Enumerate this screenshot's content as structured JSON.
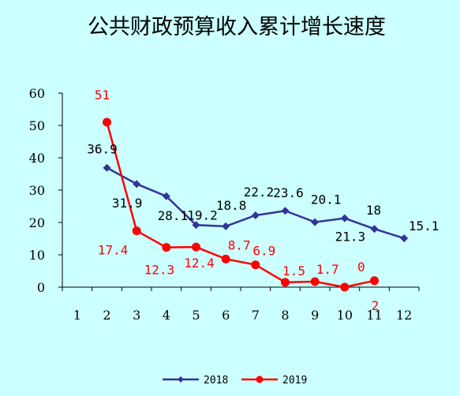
{
  "chart_data": {
    "type": "line",
    "title": "公共财政预算收入累计增长速度",
    "xlabel": "",
    "ylabel": "",
    "categories": [
      "1",
      "2",
      "3",
      "4",
      "5",
      "6",
      "7",
      "8",
      "9",
      "10",
      "11",
      "12"
    ],
    "ylim": [
      0,
      60
    ],
    "yticks": [
      "0",
      "10",
      "20",
      "30",
      "40",
      "50",
      "60"
    ],
    "grid": false,
    "legend_position": "bottom",
    "series": [
      {
        "name": "2018",
        "color": "#333399",
        "marker": "diamond",
        "values": [
          null,
          36.9,
          31.9,
          28.1,
          19.2,
          18.8,
          22.2,
          23.6,
          20.1,
          21.3,
          18,
          15.1
        ],
        "labels": [
          "",
          "36.9",
          "31.9",
          "28.1",
          "19.2",
          "18.8",
          "22.2",
          "23.6",
          "20.1",
          "21.3",
          "18",
          "15.1"
        ]
      },
      {
        "name": "2019",
        "color": "#ff0000",
        "marker": "circle",
        "values": [
          null,
          51,
          17.4,
          12.3,
          12.4,
          8.7,
          6.9,
          1.5,
          1.7,
          0,
          2,
          null
        ],
        "labels": [
          "",
          "51",
          "17.4",
          "12.3",
          "12.4",
          "8.7",
          "6.9",
          "1.5",
          "1.7",
          "0",
          "2",
          ""
        ]
      }
    ]
  }
}
